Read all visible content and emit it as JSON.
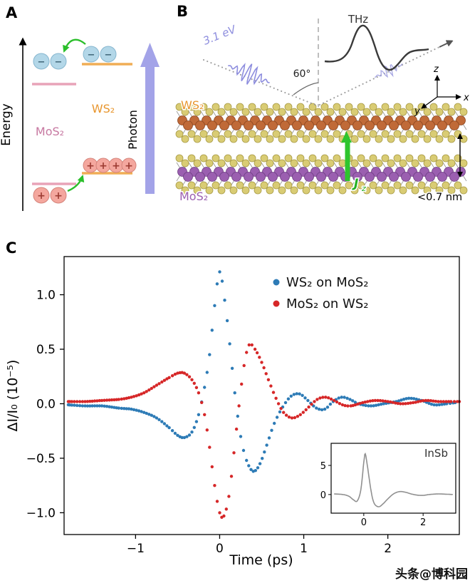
{
  "watermark": "头条@博科园",
  "panelA": {
    "label": "A",
    "energy_axis_label": "Energy",
    "photon_arrow_label": "Photon",
    "ws2_label": "WS₂",
    "mos2_label": "MoS₂",
    "electron_sign": "−",
    "hole_sign": "+",
    "colors": {
      "ws2_level": "#f0ad55",
      "mos2_level": "#e8a3b8",
      "electron": "#b3d7e8",
      "hole": "#f4a79e",
      "photon": "#a3a3e8",
      "transfer_arrow": "#2bbf2b"
    }
  },
  "panelB": {
    "label": "B",
    "pump_label": "3.1 eV",
    "incidence_angle_label": "60°",
    "thz_label": "THz",
    "ws2_label": "WS₂",
    "mos2_label": "MoS₂",
    "current_label": {
      "base": "J",
      "sub": "z"
    },
    "thickness_label": "<0.7 nm",
    "axis_labels": {
      "x": "x",
      "y": "y",
      "z": "z"
    },
    "colors": {
      "pump": "#8d8dde",
      "thz": "#3a3a3a",
      "current": "#2ec52e",
      "w_atom": "#c06a38",
      "mo_atom": "#9b5fb0",
      "s_atom": "#d9cc74"
    }
  },
  "panelC": {
    "label": "C"
  },
  "chart_data": {
    "type": "scatter",
    "title": "",
    "xlabel": "Time (ps)",
    "ylabel": "ΔI/I₀ (10⁻⁵)",
    "xlim": [
      -1.85,
      2.85
    ],
    "ylim": [
      -1.2,
      1.35
    ],
    "xticks": [
      -1,
      0,
      1,
      2
    ],
    "xtick_labels": [
      "−1",
      "0",
      "1",
      "2"
    ],
    "yticks": [
      -1.0,
      -0.5,
      0.0,
      0.5,
      1.0
    ],
    "ytick_labels": [
      "−1.0",
      "−0.5",
      "0.0",
      "0.5",
      "1.0"
    ],
    "grid": false,
    "legend_position": "upper right",
    "series": [
      {
        "name": "WS₂ on MoS₂",
        "color": "#2d7bb6",
        "style": "dots",
        "points": [
          [
            -1.8,
            -0.01
          ],
          [
            -1.6,
            -0.02
          ],
          [
            -1.4,
            -0.02
          ],
          [
            -1.2,
            -0.04
          ],
          [
            -1.05,
            -0.05
          ],
          [
            -0.9,
            -0.08
          ],
          [
            -0.75,
            -0.13
          ],
          [
            -0.6,
            -0.22
          ],
          [
            -0.5,
            -0.29
          ],
          [
            -0.42,
            -0.31
          ],
          [
            -0.33,
            -0.26
          ],
          [
            -0.25,
            -0.1
          ],
          [
            -0.18,
            0.15
          ],
          [
            -0.12,
            0.45
          ],
          [
            -0.06,
            0.9
          ],
          [
            0,
            1.21
          ],
          [
            0.06,
            0.95
          ],
          [
            0.12,
            0.55
          ],
          [
            0.18,
            0.1
          ],
          [
            0.25,
            -0.3
          ],
          [
            0.32,
            -0.52
          ],
          [
            0.4,
            -0.62
          ],
          [
            0.48,
            -0.55
          ],
          [
            0.56,
            -0.38
          ],
          [
            0.65,
            -0.18
          ],
          [
            0.75,
            -0.03
          ],
          [
            0.85,
            0.07
          ],
          [
            0.95,
            0.09
          ],
          [
            1.05,
            0.03
          ],
          [
            1.15,
            -0.04
          ],
          [
            1.25,
            -0.05
          ],
          [
            1.35,
            0.02
          ],
          [
            1.45,
            0.06
          ],
          [
            1.55,
            0.04
          ],
          [
            1.65,
            0
          ],
          [
            1.8,
            -0.02
          ],
          [
            1.95,
            0
          ],
          [
            2.1,
            0.02
          ],
          [
            2.25,
            0.05
          ],
          [
            2.4,
            0.03
          ],
          [
            2.55,
            -0.01
          ],
          [
            2.7,
            0
          ],
          [
            2.8,
            0.01
          ]
        ]
      },
      {
        "name": "MoS₂ on WS₂",
        "color": "#d62728",
        "style": "dots",
        "points": [
          [
            -1.8,
            0.02
          ],
          [
            -1.6,
            0.02
          ],
          [
            -1.4,
            0.03
          ],
          [
            -1.2,
            0.04
          ],
          [
            -1.05,
            0.06
          ],
          [
            -0.9,
            0.1
          ],
          [
            -0.75,
            0.17
          ],
          [
            -0.6,
            0.24
          ],
          [
            -0.5,
            0.28
          ],
          [
            -0.42,
            0.28
          ],
          [
            -0.33,
            0.22
          ],
          [
            -0.25,
            0.1
          ],
          [
            -0.18,
            -0.1
          ],
          [
            -0.12,
            -0.4
          ],
          [
            -0.06,
            -0.75
          ],
          [
            0,
            -1
          ],
          [
            0.05,
            -1.03
          ],
          [
            0.11,
            -0.85
          ],
          [
            0.17,
            -0.45
          ],
          [
            0.23,
            -0.02
          ],
          [
            0.29,
            0.35
          ],
          [
            0.35,
            0.54
          ],
          [
            0.42,
            0.5
          ],
          [
            0.5,
            0.38
          ],
          [
            0.58,
            0.22
          ],
          [
            0.67,
            0.05
          ],
          [
            0.76,
            -0.08
          ],
          [
            0.86,
            -0.13
          ],
          [
            0.96,
            -0.1
          ],
          [
            1.06,
            -0.03
          ],
          [
            1.16,
            0.04
          ],
          [
            1.26,
            0.06
          ],
          [
            1.36,
            0.03
          ],
          [
            1.46,
            -0.01
          ],
          [
            1.56,
            -0.02
          ],
          [
            1.7,
            0.01
          ],
          [
            1.85,
            0.03
          ],
          [
            2,
            0.02
          ],
          [
            2.15,
            0
          ],
          [
            2.3,
            0.01
          ],
          [
            2.45,
            0.03
          ],
          [
            2.6,
            0.02
          ],
          [
            2.75,
            0.02
          ],
          [
            2.85,
            0.02
          ]
        ]
      }
    ],
    "inset": {
      "label": "InSb",
      "type": "line",
      "color": "#909090",
      "xlim": [
        -1.1,
        3.1
      ],
      "ylim": [
        -3.2,
        8.8
      ],
      "xticks": [
        0,
        2
      ],
      "xtick_labels": [
        "0",
        "2"
      ],
      "yticks": [
        5,
        0
      ],
      "ytick_labels": [
        "5",
        "0"
      ],
      "points": [
        [
          -1,
          0.1
        ],
        [
          -0.7,
          0
        ],
        [
          -0.5,
          -0.3
        ],
        [
          -0.35,
          -0.9
        ],
        [
          -0.22,
          -1.1
        ],
        [
          -0.1,
          0.8
        ],
        [
          0,
          5.5
        ],
        [
          0.05,
          7
        ],
        [
          0.12,
          5
        ],
        [
          0.25,
          0.5
        ],
        [
          0.35,
          -1.5
        ],
        [
          0.5,
          -2.1
        ],
        [
          0.65,
          -1.6
        ],
        [
          0.8,
          -0.8
        ],
        [
          1,
          0.1
        ],
        [
          1.2,
          0.5
        ],
        [
          1.4,
          0.4
        ],
        [
          1.6,
          0.1
        ],
        [
          1.8,
          -0.1
        ],
        [
          2,
          -0.15
        ],
        [
          2.2,
          0
        ],
        [
          2.5,
          0.1
        ],
        [
          2.8,
          0.05
        ],
        [
          3,
          0
        ]
      ]
    }
  }
}
